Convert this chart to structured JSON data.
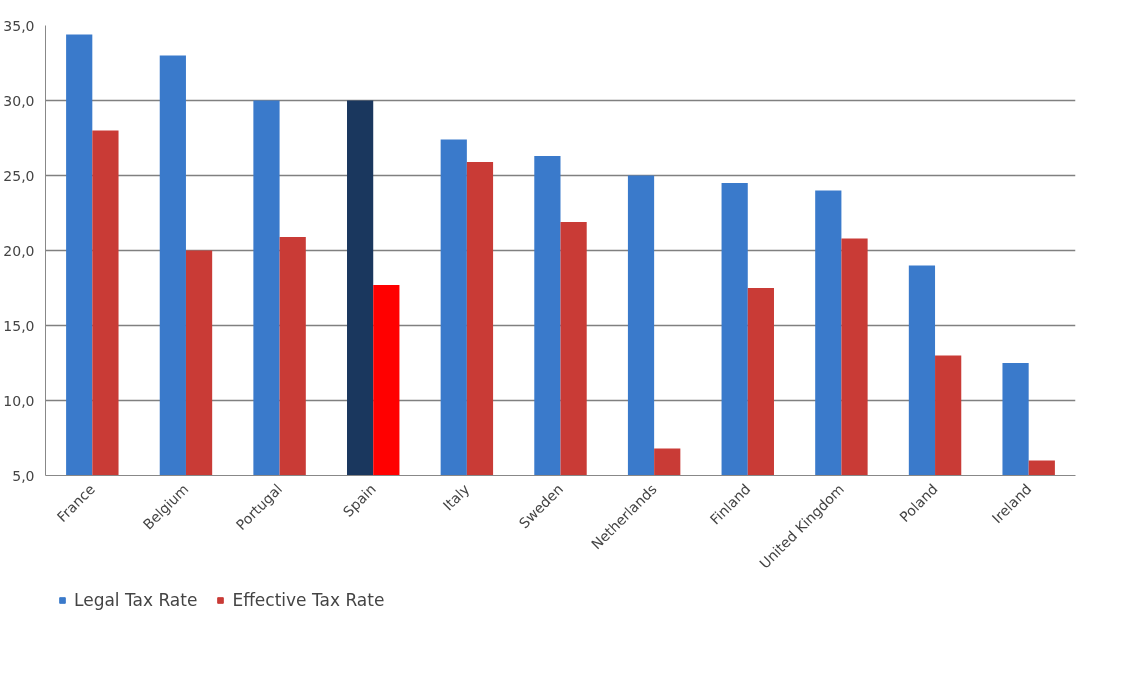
{
  "chart_data": {
    "type": "bar",
    "categories": [
      "France",
      "Belgium",
      "Portugal",
      "Spain",
      "Italy",
      "Sweden",
      "Netherlands",
      "Finland",
      "United Kingdom",
      "Poland",
      "Ireland"
    ],
    "series": [
      {
        "name": "Legal Tax Rate",
        "color": "#3a7acb",
        "colors": [
          "#3a7acb",
          "#3a7acb",
          "#3a7acb",
          "#1a375e",
          "#3a7acb",
          "#3a7acb",
          "#3a7acb",
          "#3a7acb",
          "#3a7acb",
          "#3a7acb",
          "#3a7acb"
        ],
        "values": [
          34.4,
          33.0,
          30.0,
          30.0,
          27.4,
          26.3,
          25.0,
          24.5,
          24.0,
          19.0,
          12.5
        ]
      },
      {
        "name": "Effective Tax Rate",
        "color": "#c93b36",
        "colors": [
          "#c93b36",
          "#c93b36",
          "#c93b36",
          "#ff0000",
          "#c93b36",
          "#c93b36",
          "#c93b36",
          "#c93b36",
          "#c93b36",
          "#c93b36",
          "#c93b36"
        ],
        "values": [
          28.0,
          20.0,
          20.9,
          17.7,
          25.9,
          21.9,
          6.8,
          17.5,
          20.8,
          13.0,
          6.0
        ]
      }
    ],
    "ylim": [
      5,
      35
    ],
    "yticks": [
      {
        "value": 5,
        "label": "5,0"
      },
      {
        "value": 10,
        "label": "10,0"
      },
      {
        "value": 15,
        "label": "15,0"
      },
      {
        "value": 20,
        "label": "20,0"
      },
      {
        "value": 25,
        "label": "25,0"
      },
      {
        "value": 30,
        "label": "30,0"
      },
      {
        "value": 35,
        "label": "35,0"
      }
    ],
    "grid": "y",
    "legend": "bottom left"
  }
}
